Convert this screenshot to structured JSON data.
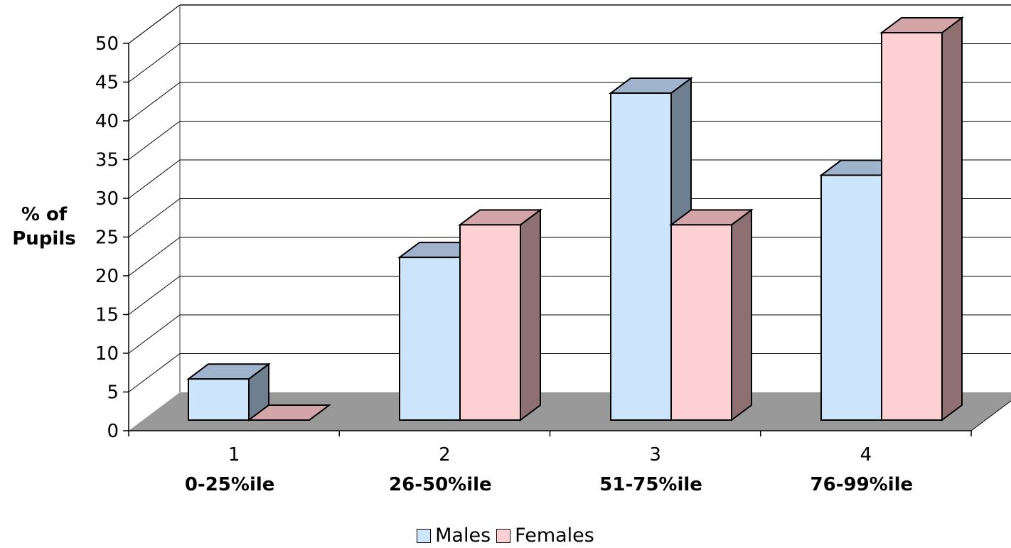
{
  "chart_data": {
    "type": "bar",
    "title": "",
    "ylabel_lines": [
      "% of",
      "Pupils"
    ],
    "xlabel": "",
    "ylim": [
      0,
      50
    ],
    "yticks": [
      0,
      5,
      10,
      15,
      20,
      25,
      30,
      35,
      40,
      45,
      50
    ],
    "categories": [
      "1",
      "2",
      "3",
      "4"
    ],
    "category_sublabels": [
      "0-25%ile",
      "26-50%ile",
      "51-75%ile",
      "76-99%ile"
    ],
    "series": [
      {
        "name": "Males",
        "values": [
          5.3,
          21,
          42.2,
          31.6
        ],
        "color": "#cce5fa",
        "top_color": "#9fb3cc",
        "side_color": "#6e7f8f"
      },
      {
        "name": "Females",
        "values": [
          0,
          25.2,
          25.2,
          50
        ],
        "color": "#fdd0d3",
        "top_color": "#d3a4a8",
        "side_color": "#8e7073"
      }
    ],
    "grid": true,
    "legend_position": "bottom",
    "floor_color": "#999999",
    "wall_line_color": "#999999"
  }
}
